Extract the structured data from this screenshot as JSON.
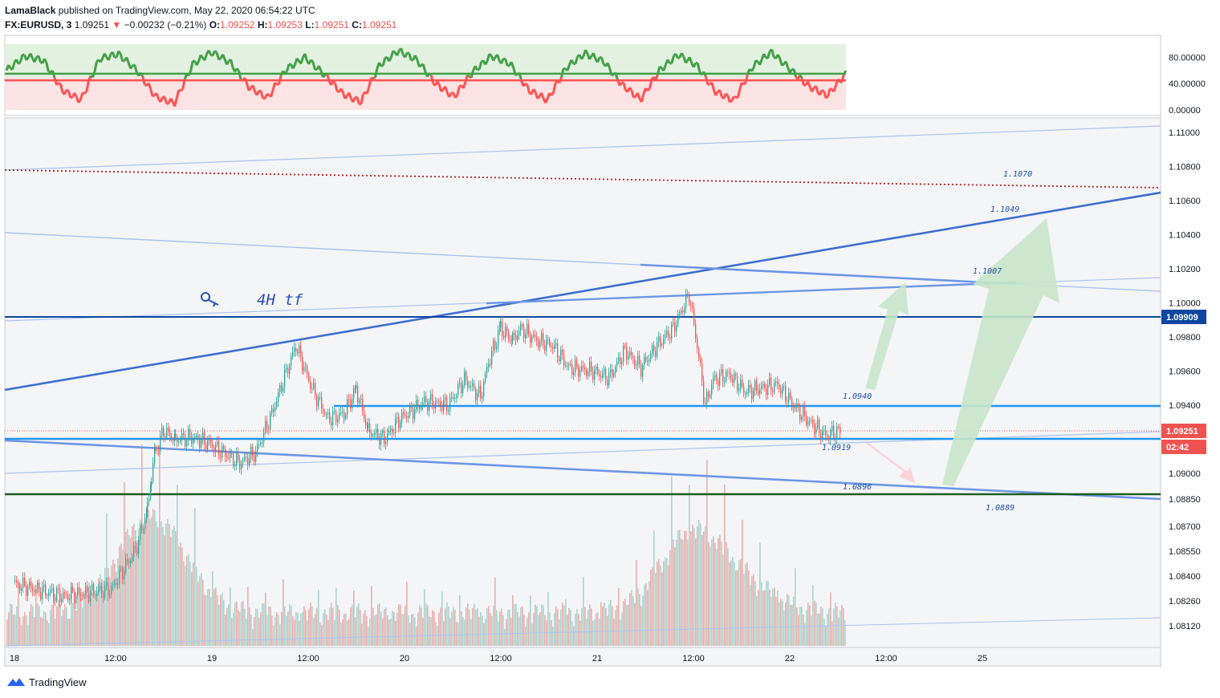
{
  "header": {
    "publisher": "LamaBlack",
    "published_text": "published on TradingView.com, May 22, 2020 06:54:22 UTC",
    "symbol": "FX:EURUSD, 3",
    "last": "1.09251",
    "change_arrow": "▼",
    "change": "−0.00232 (−0.21%)",
    "o_label": "O:",
    "o": "1.09252",
    "h_label": "H:",
    "h": "1.09253",
    "l_label": "L:",
    "l": "1.09251",
    "c_label": "C:",
    "c": "1.09251"
  },
  "footer": {
    "brand": "TradingView",
    "logo_icon": "tradingview-logo-icon"
  },
  "annotation": {
    "text": "4H tf",
    "icon": "key-icon"
  },
  "colors": {
    "up": "#26a69a",
    "down": "#ef5350",
    "trend_dark": "#3c6fd1",
    "trend_light": "#a9c4ef",
    "level_blue": "#2196f3",
    "level_navy": "#0d47a1",
    "level_green": "#1b5e20",
    "resistance_dotted": "#b71c1c",
    "osc_green": "#43a047",
    "osc_red": "#ff5252",
    "arrow_green": "#c8e6c9",
    "arrow_red": "#ffcdd2"
  },
  "chart_data": [
    {
      "type": "line",
      "name": "oscillator",
      "ylim": [
        0,
        100
      ],
      "y_ticks": [
        "80.00000",
        "40.00000",
        "0.00000"
      ],
      "overbought_band": [
        50,
        100
      ],
      "oversold_band": [
        0,
        50
      ],
      "midline": 50,
      "description_values": [
        60,
        82,
        75,
        30,
        15,
        78,
        85,
        60,
        20,
        10,
        70,
        88,
        72,
        35,
        18,
        62,
        80,
        55,
        25,
        12,
        68,
        90,
        76,
        40,
        20,
        58,
        82,
        70,
        30,
        15,
        64,
        86,
        74,
        38,
        16,
        60,
        84,
        68,
        28,
        14,
        66,
        88,
        62,
        36,
        22,
        55
      ]
    },
    {
      "type": "candlestick",
      "name": "FX:EURUSD, 3",
      "x_ticks": [
        "18",
        "12:00",
        "19",
        "12:00",
        "20",
        "12:00",
        "21",
        "12:00",
        "22",
        "12:00",
        "25"
      ],
      "y_ticks": [
        "1.11000",
        "1.10800",
        "1.10600",
        "1.10400",
        "1.10200",
        "1.10000",
        "1.09800",
        "1.09600",
        "1.09400",
        "1.09000",
        "1.08850",
        "1.08700",
        "1.08550",
        "1.08400",
        "1.08260",
        "1.08120"
      ],
      "ylim": [
        1.0802,
        1.1117
      ],
      "close_path": [
        {
          "x": "18 00:00",
          "y": 1.0835
        },
        {
          "x": "18 06:00",
          "y": 1.0828
        },
        {
          "x": "18 12:00",
          "y": 1.0832
        },
        {
          "x": "18 15:00",
          "y": 1.0855
        },
        {
          "x": "18 16:30",
          "y": 1.0878
        },
        {
          "x": "18 17:00",
          "y": 1.09
        },
        {
          "x": "18 17:30",
          "y": 1.0912
        },
        {
          "x": "18 18:30",
          "y": 1.0925
        },
        {
          "x": "18 20:00",
          "y": 1.092
        },
        {
          "x": "18 22:00",
          "y": 1.0921
        },
        {
          "x": "19 00:00",
          "y": 1.0918
        },
        {
          "x": "19 04:00",
          "y": 1.0906
        },
        {
          "x": "19 06:00",
          "y": 1.0912
        },
        {
          "x": "19 08:00",
          "y": 1.0935
        },
        {
          "x": "19 10:00",
          "y": 1.0962
        },
        {
          "x": "19 11:00",
          "y": 1.0975
        },
        {
          "x": "19 13:00",
          "y": 1.095
        },
        {
          "x": "19 15:00",
          "y": 1.0932
        },
        {
          "x": "19 17:00",
          "y": 1.0935
        },
        {
          "x": "19 18:30",
          "y": 1.095
        },
        {
          "x": "19 20:00",
          "y": 1.0925
        },
        {
          "x": "19 22:00",
          "y": 1.092
        },
        {
          "x": "20 00:00",
          "y": 1.0932
        },
        {
          "x": "20 03:00",
          "y": 1.0942
        },
        {
          "x": "20 06:00",
          "y": 1.094
        },
        {
          "x": "20 08:00",
          "y": 1.0955
        },
        {
          "x": "20 10:00",
          "y": 1.0945
        },
        {
          "x": "20 11:00",
          "y": 1.0965
        },
        {
          "x": "20 12:30",
          "y": 1.0985
        },
        {
          "x": "20 14:00",
          "y": 1.0978
        },
        {
          "x": "20 15:00",
          "y": 1.0985
        },
        {
          "x": "20 17:00",
          "y": 1.0978
        },
        {
          "x": "20 19:00",
          "y": 1.0975
        },
        {
          "x": "20 21:00",
          "y": 1.0962
        },
        {
          "x": "21 00:00",
          "y": 1.096
        },
        {
          "x": "21 02:00",
          "y": 1.0956
        },
        {
          "x": "21 04:00",
          "y": 1.0972
        },
        {
          "x": "21 06:00",
          "y": 1.0962
        },
        {
          "x": "21 08:00",
          "y": 1.0975
        },
        {
          "x": "21 10:00",
          "y": 1.0985
        },
        {
          "x": "21 12:00",
          "y": 1.1005
        },
        {
          "x": "21 13:00",
          "y": 1.0975
        },
        {
          "x": "21 14:00",
          "y": 1.094
        },
        {
          "x": "21 15:00",
          "y": 1.0955
        },
        {
          "x": "21 17:00",
          "y": 1.0958
        },
        {
          "x": "21 19:00",
          "y": 1.0948
        },
        {
          "x": "21 21:00",
          "y": 1.095
        },
        {
          "x": "21 23:00",
          "y": 1.0952
        },
        {
          "x": "22 01:00",
          "y": 1.094
        },
        {
          "x": "22 03:00",
          "y": 1.093
        },
        {
          "x": "22 05:00",
          "y": 1.0922
        },
        {
          "x": "22 06:54",
          "y": 1.09251
        }
      ],
      "levels": [
        {
          "label": "1.1070",
          "value": 1.107,
          "style": "dotted"
        },
        {
          "label": "1.1049",
          "value": 1.1049,
          "style": "trendline"
        },
        {
          "label": "1.1007",
          "value": 1.1007,
          "style": "trendline"
        },
        {
          "label": "1.0940",
          "value": 1.094,
          "style": "solid"
        },
        {
          "label": "1.0919",
          "value": 1.0919,
          "style": "solid"
        },
        {
          "label": "1.0896",
          "value": 1.0896,
          "style": "trendline"
        },
        {
          "label": "1.0889",
          "value": 1.0889,
          "style": "solid"
        }
      ],
      "price_tags": [
        {
          "label": "1.09909",
          "value": 1.09909
        },
        {
          "label": "1.09251",
          "value": 1.09251
        },
        {
          "label": "02:42",
          "value": 1.0918
        }
      ],
      "volume": {
        "peak_session": "18 17:00",
        "second_peak": "21 12:00"
      }
    }
  ]
}
